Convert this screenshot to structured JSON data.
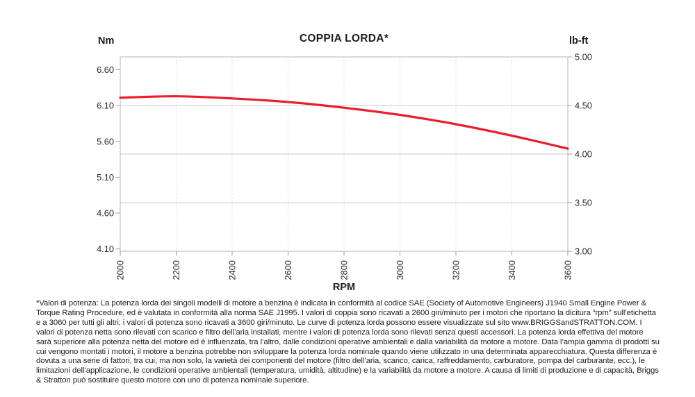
{
  "header": {
    "title": "COPPIA LORDA*",
    "left_axis_unit": "Nm",
    "right_axis_unit": "lb-ft",
    "x_axis_label": "RPM"
  },
  "colors": {
    "curve_red": "#ED1C2D",
    "grid_solid": "#c9c9c9",
    "grid_dashed": "#d0d0d0",
    "axis_border": "#b5b5b5",
    "tick_mark": "#9c9c9c",
    "text": "#1d1d1b"
  },
  "chart_data": {
    "type": "line",
    "title": "COPPIA LORDA*",
    "xlabel": "RPM",
    "ylabel_left": "Nm",
    "ylabel_right": "lb-ft",
    "x": [
      2000,
      2200,
      2400,
      2600,
      2800,
      3000,
      3200,
      3400,
      3600
    ],
    "series": [
      {
        "name": "Coppia lorda (Nm)",
        "values": [
          6.21,
          6.23,
          6.2,
          6.15,
          6.07,
          5.97,
          5.84,
          5.68,
          5.5
        ]
      }
    ],
    "x_ticks": [
      2000,
      2200,
      2400,
      2600,
      2800,
      3000,
      3200,
      3400,
      3600
    ],
    "left_ticks_nm": [
      6.6,
      6.1,
      5.6,
      5.1,
      4.6,
      4.1
    ],
    "right_ticks_lbft": [
      5.0,
      4.5,
      4.0,
      3.5,
      3.0
    ],
    "xlim": [
      2000,
      3600
    ],
    "ylim_lbft": [
      3.0,
      5.0
    ],
    "nm_to_lbft": 0.73756,
    "grid": "horizontal-solid, vertical-dashed",
    "legend": "none"
  },
  "footnote": {
    "text": "*Valori di potenza: La potenza lorda dei singoli modelli di motore a benzina è indicata in conformità al codice SAE (Society of Automotive Engineers) J1940 Small Engine Power & Torque Rating Procedure, ed è valutata in conformità alla norma SAE J1995. I valori di coppia sono ricavati a 2600 giri/minuto per i motori che riportano la dicitura “rpm” sull’etichetta e a 3060 per tutti gli altri; i valori di potenza sono ricavati a 3600 giri/minuto. Le curve di potenza lorda possono essere visualizzate sul sito www.BRIGGSandSTRATTON.COM. I valori di potenza netta sono rilevati con scarico e filtro dell’aria installati, mentre i valori di potenza lorda sono rilevati senza questi accessori. La potenza lorda effettiva del motore sarà superiore alla potenza netta del motore ed è influenzata, tra l’altro, dalle condizioni operative ambientali e dalla variabilità da motore a motore. Data l’ampia gamma di prodotti su cui vengono montati i motori, il motore a benzina potrebbe non sviluppare la potenza lorda nominale quando viene utilizzato in una determinata apparecchiatura. Questa differenza è dovuta a una serie di fattori, tra cui, ma non solo, la varietà dei componenti del motore (filtro dell’aria, scarico, carica, raffreddamento, carburatore, pompa del carburante, ecc.), le limitazioni dell’applicazione, le condizioni operative ambientali (temperatura, umidità, altitudine) e la variabilità da motore a motore. A causa di limiti di produzione e di capacità, Briggs & Stratton può sostituire questo motore con uno di potenza nominale superiore."
  }
}
